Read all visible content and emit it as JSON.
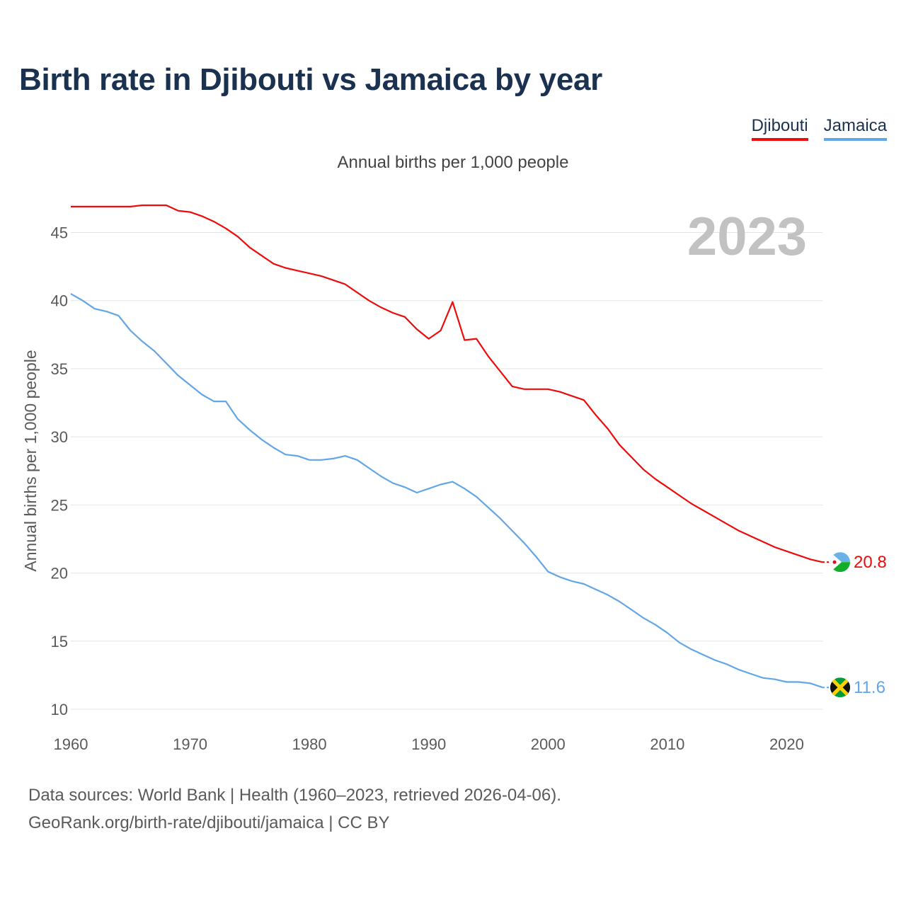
{
  "title": "Birth rate in Djibouti vs Jamaica by year",
  "subtitle": "Annual births per 1,000 people",
  "legend": [
    {
      "name": "Djibouti",
      "color": "#ee0b0b"
    },
    {
      "name": "Jamaica",
      "color": "#62a6e8"
    }
  ],
  "year_label": "2023",
  "footer": {
    "line1": "Data sources: World Bank | Health (1960–2023, retrieved 2026-04-06).",
    "line2": "GeoRank.org/birth-rate/djibouti/jamaica | CC BY"
  },
  "chart_data": {
    "type": "line",
    "title": "Birth rate in Djibouti vs Jamaica by year",
    "subtitle": "Annual births per 1,000 people",
    "xlabel": "",
    "ylabel": "Annual births per 1,000 people",
    "xlim": [
      1960,
      2023
    ],
    "ylim": [
      10,
      47
    ],
    "x_ticks": [
      1960,
      1970,
      1980,
      1990,
      2000,
      2010,
      2020
    ],
    "y_ticks": [
      10,
      15,
      20,
      25,
      30,
      35,
      40,
      45
    ],
    "grid": true,
    "x": [
      1960,
      1961,
      1962,
      1963,
      1964,
      1965,
      1966,
      1967,
      1968,
      1969,
      1970,
      1971,
      1972,
      1973,
      1974,
      1975,
      1976,
      1977,
      1978,
      1979,
      1980,
      1981,
      1982,
      1983,
      1984,
      1985,
      1986,
      1987,
      1988,
      1989,
      1990,
      1991,
      1992,
      1993,
      1994,
      1995,
      1996,
      1997,
      1998,
      1999,
      2000,
      2001,
      2002,
      2003,
      2004,
      2005,
      2006,
      2007,
      2008,
      2009,
      2010,
      2011,
      2012,
      2013,
      2014,
      2015,
      2016,
      2017,
      2018,
      2019,
      2020,
      2021,
      2022,
      2023
    ],
    "series": [
      {
        "name": "Djibouti",
        "color": "#ee0b0b",
        "end_label": "20.8",
        "values": [
          46.9,
          46.9,
          46.9,
          46.9,
          46.9,
          46.9,
          47.0,
          47.0,
          47.0,
          46.6,
          46.5,
          46.2,
          45.8,
          45.3,
          44.7,
          43.9,
          43.3,
          42.7,
          42.4,
          42.2,
          42.0,
          41.8,
          41.5,
          41.2,
          40.6,
          40.0,
          39.5,
          39.1,
          38.8,
          37.9,
          37.2,
          37.8,
          39.9,
          37.1,
          37.2,
          35.9,
          34.8,
          33.7,
          33.5,
          33.5,
          33.5,
          33.3,
          33.0,
          32.7,
          31.6,
          30.6,
          29.4,
          28.5,
          27.6,
          26.9,
          26.3,
          25.7,
          25.1,
          24.6,
          24.1,
          23.6,
          23.1,
          22.7,
          22.3,
          21.9,
          21.6,
          21.3,
          21.0,
          20.8
        ]
      },
      {
        "name": "Jamaica",
        "color": "#62a6e8",
        "end_label": "11.6",
        "values": [
          40.5,
          40.0,
          39.4,
          39.2,
          38.9,
          37.8,
          37.0,
          36.3,
          35.4,
          34.5,
          33.8,
          33.1,
          32.6,
          32.6,
          31.3,
          30.5,
          29.8,
          29.2,
          28.7,
          28.6,
          28.3,
          28.3,
          28.4,
          28.6,
          28.3,
          27.7,
          27.1,
          26.6,
          26.3,
          25.9,
          26.2,
          26.5,
          26.7,
          26.2,
          25.6,
          24.8,
          24.0,
          23.1,
          22.2,
          21.2,
          20.1,
          19.7,
          19.4,
          19.2,
          18.8,
          18.4,
          17.9,
          17.3,
          16.7,
          16.2,
          15.6,
          14.9,
          14.4,
          14.0,
          13.6,
          13.3,
          12.9,
          12.6,
          12.3,
          12.2,
          12.0,
          12.0,
          11.9,
          11.6
        ]
      }
    ]
  }
}
